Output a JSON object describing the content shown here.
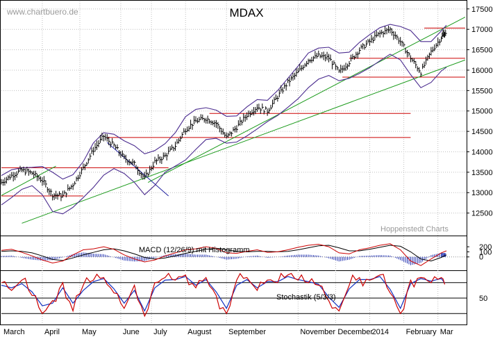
{
  "watermark": "www.chartbuero.de",
  "credit": "Hoppenstedt Charts",
  "chart_data": [
    {
      "type": "line",
      "title": "MDAX",
      "ylim": [
        12000,
        17650
      ],
      "yticks": [
        12500,
        13000,
        13500,
        14000,
        14500,
        15000,
        15500,
        16000,
        16500,
        17000,
        17500
      ],
      "x_months": [
        "March",
        "April",
        "May",
        "June",
        "July",
        "August",
        "September",
        "November",
        "December",
        "2014",
        "February",
        "Mar"
      ],
      "x_month_pos": [
        0.5,
        1.7,
        2.8,
        4.0,
        4.9,
        5.9,
        7.1,
        9.2,
        10.3,
        11.3,
        12.3,
        13.3
      ],
      "xlim": [
        0,
        13.6
      ],
      "series": [
        {
          "x": [
            0,
            0.3,
            0.6,
            0.9,
            1.2,
            1.5,
            1.8,
            2.1,
            2.4,
            2.7,
            3.0,
            3.3,
            3.6,
            3.9,
            4.2,
            4.5,
            4.8,
            5.1,
            5.4,
            5.7,
            6.0,
            6.3,
            6.6,
            6.9,
            7.2,
            7.5,
            7.8,
            8.1,
            8.4,
            8.7,
            9.0,
            9.3,
            9.6,
            9.9,
            10.2,
            10.5,
            10.8,
            11.1,
            11.4,
            11.7,
            12.0,
            12.3,
            12.6,
            12.9,
            13.05
          ],
          "values": [
            13250,
            13420,
            13550,
            13480,
            13300,
            12950,
            12920,
            13200,
            13600,
            14050,
            14380,
            14150,
            13850,
            13700,
            13350,
            13750,
            13900,
            14150,
            14550,
            14750,
            14820,
            14700,
            14350,
            14600,
            14900,
            15100,
            15000,
            15350,
            15700,
            15950,
            16250,
            16350,
            16300,
            15950,
            16200,
            16500,
            16700,
            16900,
            17000,
            16700,
            16300,
            15950,
            16450,
            16800,
            16950
          ]
        }
      ],
      "bands": {
        "upper": [
          13420,
          13560,
          13610,
          13620,
          13640,
          13500,
          13330,
          13440,
          13760,
          14220,
          14470,
          14430,
          14270,
          14150,
          13950,
          14030,
          14200,
          14470,
          14860,
          15040,
          15080,
          15020,
          14870,
          14880,
          15100,
          15280,
          15260,
          15500,
          15800,
          16100,
          16420,
          16540,
          16560,
          16420,
          16440,
          16680,
          16870,
          17040,
          17120,
          17070,
          16970,
          16700,
          16700,
          16960,
          17100
        ],
        "lower": [
          12700,
          12880,
          13080,
          13170,
          12950,
          12540,
          12480,
          12640,
          12880,
          13130,
          13430,
          13590,
          13470,
          13250,
          12950,
          13180,
          13500,
          13650,
          13800,
          14060,
          14300,
          14330,
          14210,
          14240,
          14390,
          14560,
          14740,
          14890,
          15090,
          15300,
          15570,
          15780,
          15870,
          15740,
          15800,
          15920,
          16060,
          16230,
          16390,
          16250,
          15890,
          15570,
          15700,
          15980,
          16070
        ]
      },
      "horizontal_levels": [
        {
          "value": 12920,
          "x_range": [
            0,
            2.4
          ]
        },
        {
          "value": 13610,
          "x_range": [
            0,
            4.9
          ]
        },
        {
          "value": 14350,
          "x_range": [
            3.1,
            12.0
          ]
        },
        {
          "value": 14940,
          "x_range": [
            6.1,
            12.0
          ]
        },
        {
          "value": 15830,
          "x_range": [
            10.0,
            13.6
          ]
        },
        {
          "value": 16290,
          "x_range": [
            10.2,
            13.6
          ]
        },
        {
          "value": 17030,
          "x_range": [
            12.4,
            13.6
          ]
        }
      ],
      "trendlines": [
        {
          "x": [
            0.6,
            13.6
          ],
          "y": [
            12250,
            16250
          ]
        },
        {
          "x": [
            4.3,
            13.6
          ],
          "y": [
            13250,
            17300
          ]
        },
        {
          "x": [
            0,
            1.6
          ],
          "y": [
            12930,
            13650
          ]
        },
        {
          "x": [
            3.1,
            4.9
          ],
          "y": [
            14230,
            12920
          ]
        }
      ]
    },
    {
      "type": "line",
      "title": "MACD (12/26/9) mit Histogramm",
      "ylim": [
        -250,
        380
      ],
      "yticks": [
        0,
        100,
        200
      ],
      "macd": [
        130,
        150,
        90,
        20,
        -60,
        -120,
        -80,
        40,
        140,
        160,
        200,
        150,
        40,
        -40,
        -100,
        -60,
        20,
        80,
        140,
        160,
        200,
        170,
        80,
        70,
        110,
        140,
        90,
        100,
        140,
        190,
        230,
        250,
        200,
        80,
        60,
        140,
        180,
        230,
        260,
        140,
        -80,
        -170,
        -40,
        80,
        120
      ],
      "signal": [
        110,
        120,
        110,
        80,
        20,
        -50,
        -70,
        -20,
        40,
        90,
        140,
        160,
        120,
        60,
        -10,
        -40,
        -20,
        20,
        70,
        110,
        150,
        170,
        140,
        110,
        100,
        110,
        110,
        100,
        110,
        140,
        180,
        220,
        230,
        180,
        120,
        120,
        150,
        190,
        230,
        210,
        100,
        -40,
        -80,
        -10,
        40
      ]
    },
    {
      "type": "line",
      "title": "Stochastik (5/3/3)",
      "ylim": [
        0,
        100
      ],
      "ytick_labels": [
        50
      ],
      "k": [
        80,
        65,
        85,
        55,
        20,
        45,
        80,
        25,
        75,
        85,
        90,
        60,
        30,
        75,
        15,
        80,
        90,
        85,
        95,
        70,
        90,
        55,
        20,
        85,
        90,
        65,
        85,
        80,
        95,
        85,
        80,
        75,
        45,
        25,
        75,
        90,
        85,
        95,
        60,
        20,
        85,
        90,
        80,
        90,
        70
      ],
      "d": [
        75,
        70,
        78,
        62,
        35,
        40,
        70,
        40,
        65,
        82,
        88,
        68,
        40,
        65,
        25,
        70,
        85,
        86,
        92,
        75,
        86,
        62,
        30,
        75,
        86,
        70,
        82,
        82,
        92,
        86,
        82,
        77,
        52,
        32,
        68,
        86,
        86,
        92,
        67,
        30,
        78,
        88,
        83,
        88,
        75
      ]
    }
  ]
}
